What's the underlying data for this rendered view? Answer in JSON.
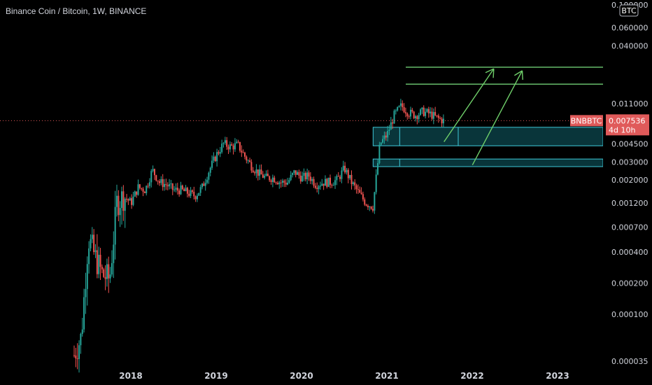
{
  "header": {
    "title": "Binance Coin / Bitcoin, 1W, BINANCE"
  },
  "axis_badge": "BTC",
  "colors": {
    "up": "#26a69a",
    "down": "#ef5350",
    "zone": "#0b3e44",
    "zone_border": "#3ec8d8",
    "target": "#66bb6a",
    "arrow": "#6fcf6a",
    "price_line": "#e05a5a"
  },
  "chart_data": {
    "type": "candlestick",
    "title": "Binance Coin / Bitcoin, 1W, BINANCE",
    "symbol": "BNBBTC",
    "timeframe": "1W",
    "exchange": "BINANCE",
    "y_scale": "log",
    "ylim": [
      3.5e-05,
      0.1
    ],
    "y_ticks": [
      "0.100000",
      "0.060000",
      "0.040000",
      "0.011000",
      "0.004500",
      "0.003000",
      "0.002000",
      "0.001200",
      "0.000700",
      "0.000400",
      "0.000200",
      "0.000100",
      "0.000035"
    ],
    "x_ticks": [
      "2018",
      "2019",
      "2020",
      "2021",
      "2022",
      "2023"
    ],
    "last_price": {
      "symbol": "BNBBTC",
      "value": "0.007536",
      "countdown": "4d 10h"
    },
    "target_levels": [
      {
        "label": "0.024872",
        "value": 0.024872
      },
      {
        "label": "0.017017",
        "value": 0.017017
      }
    ],
    "zones": [
      {
        "low": 0.0043,
        "high": 0.0065,
        "start": "2021-03",
        "end": "2023-12"
      },
      {
        "low": 0.0027,
        "high": 0.0032,
        "start": "2021-03",
        "end": "2023-12"
      }
    ],
    "arrows": [
      {
        "from_date": "2021-11",
        "from_value": 0.0047,
        "to_date": "2022-06",
        "to_value": 0.024
      },
      {
        "from_date": "2022-03",
        "from_value": 0.0028,
        "to_date": "2022-10",
        "to_value": 0.023
      }
    ],
    "path": [
      [
        "2017-07",
        4e-05
      ],
      [
        "2017-08",
        6e-05
      ],
      [
        "2017-09",
        0.00055
      ],
      [
        "2017-10",
        0.00035
      ],
      [
        "2017-11",
        0.00024
      ],
      [
        "2017-12",
        0.00022
      ],
      [
        "2018-01",
        0.0012
      ],
      [
        "2018-02",
        0.0014
      ],
      [
        "2018-03",
        0.0012
      ],
      [
        "2018-04",
        0.0017
      ],
      [
        "2018-05",
        0.0016
      ],
      [
        "2018-06",
        0.0025
      ],
      [
        "2018-07",
        0.0019
      ],
      [
        "2018-08",
        0.0018
      ],
      [
        "2018-09",
        0.0016
      ],
      [
        "2018-10",
        0.0016
      ],
      [
        "2018-11",
        0.0015
      ],
      [
        "2018-12",
        0.0014
      ],
      [
        "2019-01",
        0.0017
      ],
      [
        "2019-02",
        0.0025
      ],
      [
        "2019-03",
        0.0035
      ],
      [
        "2019-04",
        0.0045
      ],
      [
        "2019-05",
        0.0042
      ],
      [
        "2019-06",
        0.0044
      ],
      [
        "2019-07",
        0.0034
      ],
      [
        "2019-08",
        0.0027
      ],
      [
        "2019-09",
        0.0023
      ],
      [
        "2019-10",
        0.0021
      ],
      [
        "2019-11",
        0.0021
      ],
      [
        "2019-12",
        0.0019
      ],
      [
        "2020-01",
        0.0019
      ],
      [
        "2020-02",
        0.0024
      ],
      [
        "2020-03",
        0.0021
      ],
      [
        "2020-04",
        0.0022
      ],
      [
        "2020-05",
        0.0018
      ],
      [
        "2020-06",
        0.0019
      ],
      [
        "2020-07",
        0.0019
      ],
      [
        "2020-08",
        0.002
      ],
      [
        "2020-09",
        0.0026
      ],
      [
        "2020-10",
        0.0019
      ],
      [
        "2020-11",
        0.0015
      ],
      [
        "2020-12",
        0.0012
      ],
      [
        "2021-01",
        0.0011
      ],
      [
        "2021-02",
        0.0045
      ],
      [
        "2021-03",
        0.0055
      ],
      [
        "2021-04",
        0.0085
      ],
      [
        "2021-05",
        0.0105
      ],
      [
        "2021-06",
        0.009
      ],
      [
        "2021-07",
        0.0085
      ],
      [
        "2021-08",
        0.0092
      ],
      [
        "2021-09",
        0.0088
      ],
      [
        "2021-10",
        0.008
      ],
      [
        "2021-11",
        0.0075
      ]
    ]
  }
}
